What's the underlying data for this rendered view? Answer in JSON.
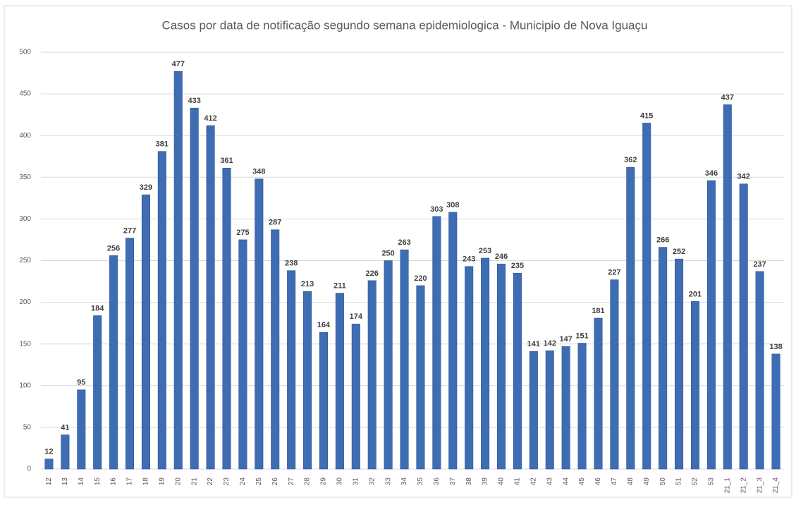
{
  "chart_data": {
    "type": "bar",
    "title": "Casos por data de notificação segundo semana epidemiologica - Municipio de Nova Iguaçu",
    "categories": [
      "12",
      "13",
      "14",
      "15",
      "16",
      "17",
      "18",
      "19",
      "20",
      "21",
      "22",
      "23",
      "24",
      "25",
      "26",
      "27",
      "28",
      "29",
      "30",
      "31",
      "32",
      "33",
      "34",
      "35",
      "36",
      "37",
      "38",
      "39",
      "40",
      "41",
      "42",
      "43",
      "44",
      "45",
      "46",
      "47",
      "48",
      "49",
      "50",
      "51",
      "52",
      "53",
      "21_1",
      "21_2",
      "21_3",
      "21_4"
    ],
    "values": [
      12,
      41,
      95,
      184,
      256,
      277,
      329,
      381,
      477,
      433,
      412,
      361,
      275,
      348,
      287,
      238,
      213,
      164,
      211,
      174,
      226,
      250,
      263,
      220,
      303,
      308,
      243,
      253,
      246,
      235,
      141,
      142,
      147,
      151,
      181,
      227,
      362,
      415,
      266,
      252,
      201,
      346,
      437,
      342,
      237,
      138
    ],
    "color": "#3f6db4",
    "ylim": [
      0,
      500
    ],
    "yticks": [
      0,
      50,
      100,
      150,
      200,
      250,
      300,
      350,
      400,
      450,
      500
    ],
    "grid": true
  }
}
